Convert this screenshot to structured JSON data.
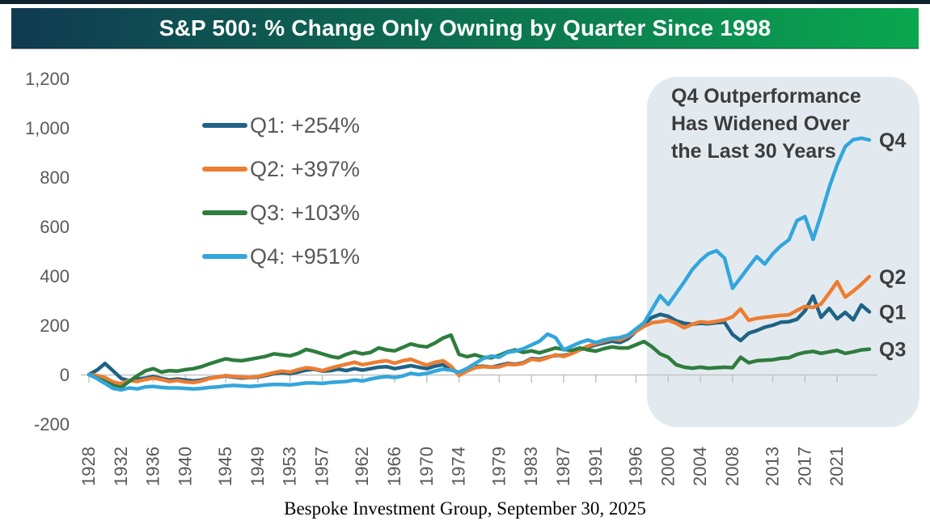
{
  "header": {
    "title": "S&P 500: % Change Only Owning by Quarter Since 1998",
    "gradient_left": "#103a52",
    "gradient_right": "#0aa74f",
    "top_border_color": "#10222e"
  },
  "annotation": {
    "lines": [
      "Q4 Outperformance",
      "Has Widened Over",
      "the Last 30 Years"
    ],
    "box_color": "#e3eaef"
  },
  "footer": {
    "source": "Bespoke Investment Group, September 30, 2025"
  },
  "chart_data": {
    "type": "line",
    "title": "S&P 500: % Change Only Owning by Quarter Since 1998",
    "xlabel": "",
    "ylabel": "",
    "ylim": [
      -200,
      1200
    ],
    "grid": false,
    "legend_position": "upper-left-inside",
    "axis_color": "#c3c3c3",
    "tick_label_color": "#595959",
    "y_axis": {
      "values": [
        1200,
        1000,
        800,
        600,
        400,
        200,
        0,
        -200
      ],
      "labels": [
        "1,200",
        "1,000",
        "800",
        "600",
        "400",
        "200",
        "0",
        "-200"
      ]
    },
    "x_axis": {
      "tick_years": [
        1928,
        1932,
        1936,
        1940,
        1945,
        1949,
        1953,
        1957,
        1962,
        1966,
        1970,
        1974,
        1979,
        1983,
        1987,
        1991,
        1996,
        2000,
        2004,
        2008,
        2013,
        2017,
        2021
      ]
    },
    "years": [
      1928,
      1929,
      1930,
      1931,
      1932,
      1933,
      1934,
      1935,
      1936,
      1937,
      1938,
      1939,
      1940,
      1941,
      1942,
      1943,
      1944,
      1945,
      1946,
      1947,
      1948,
      1949,
      1950,
      1951,
      1952,
      1953,
      1954,
      1955,
      1956,
      1957,
      1958,
      1959,
      1960,
      1961,
      1962,
      1963,
      1964,
      1965,
      1966,
      1967,
      1968,
      1969,
      1970,
      1971,
      1972,
      1973,
      1974,
      1975,
      1976,
      1977,
      1978,
      1979,
      1980,
      1981,
      1982,
      1983,
      1984,
      1985,
      1986,
      1987,
      1988,
      1989,
      1990,
      1991,
      1992,
      1993,
      1994,
      1995,
      1996,
      1997,
      1998,
      1999,
      2000,
      2001,
      2002,
      2003,
      2004,
      2005,
      2006,
      2007,
      2008,
      2009,
      2010,
      2011,
      2012,
      2013,
      2014,
      2015,
      2016,
      2017,
      2018,
      2019,
      2020,
      2021,
      2022,
      2023,
      2024,
      2025
    ],
    "series": [
      {
        "name": "Q1",
        "label": "Q1: +254%",
        "total_pct_change": 254,
        "color": "#1f6386",
        "values": [
          0,
          18,
          45,
          15,
          -15,
          -25,
          -18,
          -14,
          -8,
          -15,
          -22,
          -18,
          -22,
          -26,
          -22,
          -14,
          -10,
          -6,
          -10,
          -14,
          -12,
          -10,
          -4,
          4,
          8,
          4,
          10,
          18,
          22,
          14,
          16,
          22,
          16,
          24,
          18,
          24,
          30,
          32,
          24,
          30,
          36,
          30,
          24,
          34,
          40,
          22,
          4,
          14,
          32,
          34,
          30,
          37,
          45,
          42,
          48,
          65,
          62,
          70,
          78,
          77,
          85,
          100,
          110,
          120,
          128,
          135,
          130,
          145,
          175,
          205,
          232,
          244,
          236,
          218,
          208,
          204,
          208,
          206,
          210,
          212,
          162,
          138,
          168,
          178,
          192,
          200,
          212,
          214,
          224,
          258,
          318,
          232,
          268,
          226,
          252,
          222,
          282,
          254
        ]
      },
      {
        "name": "Q2",
        "label": "Q2: +397%",
        "total_pct_change": 397,
        "color": "#ed7d31",
        "values": [
          0,
          -4,
          -12,
          -30,
          -38,
          -24,
          -28,
          -20,
          -14,
          -20,
          -28,
          -24,
          -30,
          -32,
          -26,
          -16,
          -10,
          -4,
          -8,
          -10,
          -12,
          -8,
          0,
          8,
          14,
          10,
          20,
          28,
          24,
          16,
          26,
          34,
          42,
          50,
          40,
          46,
          52,
          56,
          46,
          56,
          62,
          50,
          38,
          50,
          56,
          34,
          -4,
          14,
          28,
          32,
          30,
          31,
          42,
          40,
          46,
          62,
          58,
          68,
          80,
          73,
          85,
          100,
          115,
          125,
          135,
          145,
          140,
          155,
          175,
          195,
          210,
          214,
          220,
          208,
          190,
          204,
          214,
          210,
          216,
          222,
          234,
          266,
          220,
          228,
          232,
          236,
          240,
          242,
          260,
          276,
          272,
          286,
          330,
          376,
          314,
          338,
          366,
          397
        ]
      },
      {
        "name": "Q3",
        "label": "Q3: +103%",
        "total_pct_change": 103,
        "color": "#2e7d3e",
        "values": [
          0,
          -14,
          -28,
          -44,
          -52,
          -28,
          -5,
          15,
          24,
          10,
          16,
          14,
          20,
          24,
          32,
          44,
          54,
          64,
          58,
          56,
          62,
          68,
          74,
          84,
          80,
          76,
          86,
          102,
          94,
          84,
          74,
          68,
          82,
          92,
          84,
          90,
          108,
          100,
          96,
          110,
          124,
          116,
          112,
          128,
          148,
          160,
          82,
          72,
          80,
          70,
          68,
          78,
          92,
          100,
          90,
          96,
          88,
          98,
          108,
          102,
          98,
          108,
          100,
          95,
          105,
          112,
          108,
          108,
          121,
          134,
          112,
          84,
          70,
          40,
          30,
          26,
          30,
          26,
          28,
          30,
          28,
          70,
          48,
          56,
          58,
          60,
          66,
          68,
          82,
          90,
          94,
          86,
          92,
          98,
          86,
          92,
          100,
          103
        ]
      },
      {
        "name": "Q4",
        "label": "Q4: +951%",
        "total_pct_change": 951,
        "color": "#33a6dc",
        "values": [
          0,
          -16,
          -36,
          -56,
          -62,
          -54,
          -58,
          -50,
          -48,
          -52,
          -54,
          -54,
          -56,
          -58,
          -56,
          -52,
          -50,
          -46,
          -44,
          -46,
          -48,
          -46,
          -42,
          -40,
          -40,
          -42,
          -38,
          -34,
          -34,
          -36,
          -32,
          -30,
          -28,
          -22,
          -26,
          -18,
          -12,
          -8,
          -12,
          -6,
          5,
          0,
          5,
          14,
          22,
          18,
          10,
          25,
          45,
          65,
          75,
          70,
          90,
          95,
          105,
          120,
          135,
          164,
          150,
          100,
          115,
          130,
          140,
          130,
          140,
          147,
          150,
          160,
          185,
          210,
          265,
          320,
          284,
          330,
          376,
          426,
          462,
          490,
          502,
          472,
          350,
          392,
          436,
          478,
          448,
          490,
          522,
          546,
          624,
          640,
          548,
          648,
          758,
          850,
          924,
          952,
          958,
          951
        ]
      }
    ]
  }
}
